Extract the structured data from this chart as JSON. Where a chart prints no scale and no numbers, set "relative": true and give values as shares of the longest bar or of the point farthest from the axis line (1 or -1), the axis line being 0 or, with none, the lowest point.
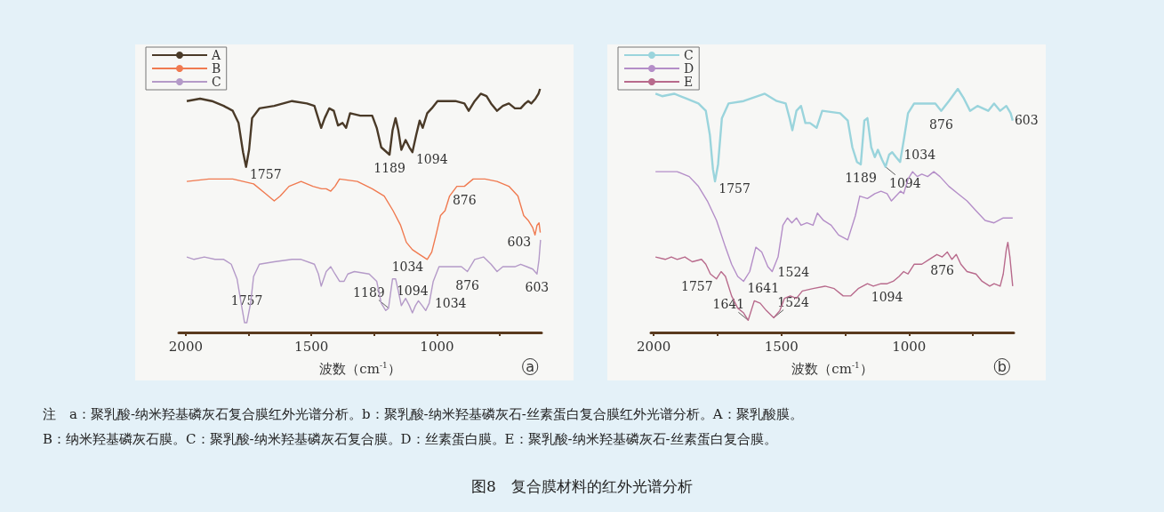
{
  "chart_data": [
    {
      "type": "line",
      "title": "a",
      "relative": true,
      "xlabel": "波数（cm$^{-1}$）",
      "xlim": [
        2028,
        584
      ],
      "xticks": [
        2000,
        {
          "value": 1750,
          "label": null
        },
        1500,
        {
          "value": 1250,
          "label": null
        },
        1000,
        {
          "value": 750,
          "label": null
        }
      ],
      "legend": "top left",
      "series": [
        {
          "name": "A",
          "color": "#4a3a28",
          "x": [
            1996,
            1943,
            1896,
            1849,
            1813,
            1790,
            1772,
            1760,
            1748,
            1736,
            1707,
            1648,
            1577,
            1518,
            1488,
            1476,
            1461,
            1447,
            1429,
            1411,
            1394,
            1376,
            1362,
            1346,
            1305,
            1258,
            1240,
            1222,
            1189,
            1177,
            1165,
            1154,
            1142,
            1125,
            1110,
            1098,
            1083,
            1069,
            1057,
            1039,
            1021,
            998,
            974,
            950,
            927,
            891,
            874,
            850,
            826,
            803,
            785,
            761,
            738,
            714,
            690,
            667,
            649,
            637,
            625,
            608,
            596,
            590
          ],
          "values": [
            0.95,
            0.96,
            0.95,
            0.93,
            0.91,
            0.86,
            0.74,
            0.68,
            0.75,
            0.88,
            0.92,
            0.93,
            0.95,
            0.94,
            0.93,
            0.89,
            0.84,
            0.88,
            0.92,
            0.91,
            0.85,
            0.86,
            0.84,
            0.9,
            0.89,
            0.89,
            0.84,
            0.76,
            0.73,
            0.83,
            0.88,
            0.83,
            0.75,
            0.79,
            0.76,
            0.74,
            0.81,
            0.87,
            0.84,
            0.9,
            0.92,
            0.95,
            0.95,
            0.95,
            0.95,
            0.94,
            0.91,
            0.95,
            0.98,
            0.97,
            0.94,
            0.91,
            0.93,
            0.94,
            0.92,
            0.92,
            0.94,
            0.95,
            0.94,
            0.96,
            0.98,
            1.0
          ]
        },
        {
          "name": "B",
          "color": "#f07a50",
          "x": [
            1996,
            1908,
            1813,
            1730,
            1683,
            1648,
            1624,
            1589,
            1541,
            1494,
            1459,
            1441,
            1423,
            1406,
            1388,
            1317,
            1258,
            1210,
            1175,
            1145,
            1122,
            1098,
            1069,
            1039,
            1021,
            1004,
            986,
            968,
            950,
            921,
            891,
            856,
            809,
            761,
            714,
            678,
            655,
            637,
            619,
            610,
            602,
            594,
            589
          ],
          "values": [
            0.62,
            0.63,
            0.63,
            0.61,
            0.57,
            0.54,
            0.56,
            0.6,
            0.62,
            0.6,
            0.59,
            0.59,
            0.58,
            0.6,
            0.63,
            0.62,
            0.59,
            0.56,
            0.5,
            0.44,
            0.37,
            0.34,
            0.32,
            0.3,
            0.33,
            0.4,
            0.48,
            0.5,
            0.56,
            0.6,
            0.6,
            0.63,
            0.63,
            0.62,
            0.6,
            0.56,
            0.48,
            0.46,
            0.43,
            0.4,
            0.44,
            0.45,
            0.41
          ]
        },
        {
          "name": "C",
          "color": "#b49ac8",
          "x": [
            1996,
            1967,
            1926,
            1884,
            1849,
            1819,
            1796,
            1778,
            1766,
            1757,
            1742,
            1730,
            1707,
            1648,
            1577,
            1541,
            1488,
            1472,
            1461,
            1441,
            1423,
            1406,
            1388,
            1370,
            1355,
            1329,
            1270,
            1240,
            1222,
            1204,
            1193,
            1177,
            1165,
            1154,
            1142,
            1125,
            1110,
            1098,
            1086,
            1074,
            1059,
            1045,
            1031,
            1015,
            992,
            968,
            939,
            903,
            879,
            850,
            815,
            785,
            761,
            738,
            690,
            667,
            643,
            619,
            602,
            594,
            588
          ],
          "values": [
            0.31,
            0.3,
            0.31,
            0.3,
            0.3,
            0.28,
            0.22,
            0.11,
            0.04,
            0.04,
            0.12,
            0.23,
            0.28,
            0.29,
            0.3,
            0.3,
            0.28,
            0.24,
            0.19,
            0.25,
            0.27,
            0.24,
            0.21,
            0.21,
            0.24,
            0.25,
            0.24,
            0.21,
            0.12,
            0.09,
            0.1,
            0.22,
            0.22,
            0.17,
            0.11,
            0.14,
            0.11,
            0.08,
            0.11,
            0.13,
            0.11,
            0.09,
            0.12,
            0.21,
            0.27,
            0.27,
            0.27,
            0.27,
            0.25,
            0.3,
            0.31,
            0.28,
            0.25,
            0.27,
            0.27,
            0.28,
            0.27,
            0.26,
            0.24,
            0.3,
            0.38
          ]
        }
      ],
      "annotations": [
        {
          "text": "1757",
          "x": 1760,
          "y": 0.68
        },
        {
          "text": "1189",
          "x": 1189,
          "y": 0.73
        },
        {
          "text": "1094",
          "x": 1098,
          "y": 0.74
        },
        {
          "text": "1034",
          "x": 1039,
          "y": 0.3
        },
        {
          "text": "876",
          "x": 891,
          "y": 0.6
        },
        {
          "text": "603",
          "x": 610,
          "y": 0.4
        },
        {
          "text": "1094",
          "x": 1098,
          "y": 0.08
        },
        {
          "text": "876",
          "x": 879,
          "y": 0.25
        },
        {
          "text": "603",
          "x": 602,
          "y": 0.24
        },
        {
          "text": "1757",
          "x": 1757,
          "y": 0.04
        },
        {
          "text": "1189",
          "x": 1193,
          "y": 0.1
        },
        {
          "text": "1034",
          "x": 1031,
          "y": 0.12
        }
      ]
    },
    {
      "type": "line",
      "title": "b",
      "relative": true,
      "xlabel": "波数（cm$^{-1}$）",
      "xlim": [
        2011,
        590
      ],
      "xticks": [
        2000,
        {
          "value": 1750,
          "label": null
        },
        1500,
        {
          "value": 1250,
          "label": null
        },
        1000,
        {
          "value": 750,
          "label": null
        }
      ],
      "legend": "top left",
      "series": [
        {
          "name": "C",
          "color": "#9ad4dc",
          "x": [
            1993,
            1967,
            1920,
            1872,
            1825,
            1796,
            1780,
            1768,
            1760,
            1748,
            1733,
            1707,
            1648,
            1565,
            1518,
            1483,
            1468,
            1457,
            1441,
            1423,
            1406,
            1388,
            1362,
            1340,
            1270,
            1240,
            1222,
            1204,
            1189,
            1175,
            1163,
            1148,
            1134,
            1122,
            1106,
            1092,
            1078,
            1066,
            1051,
            1035,
            1019,
            1004,
            980,
            939,
            897,
            874,
            844,
            809,
            785,
            761,
            732,
            690,
            667,
            643,
            619,
            602,
            594
          ],
          "values": [
            0.98,
            0.97,
            0.98,
            0.96,
            0.94,
            0.91,
            0.81,
            0.67,
            0.62,
            0.69,
            0.88,
            0.94,
            0.95,
            0.98,
            0.95,
            0.94,
            0.88,
            0.83,
            0.91,
            0.93,
            0.86,
            0.86,
            0.84,
            0.91,
            0.9,
            0.87,
            0.76,
            0.7,
            0.69,
            0.87,
            0.88,
            0.76,
            0.72,
            0.75,
            0.71,
            0.68,
            0.73,
            0.74,
            0.72,
            0.7,
            0.8,
            0.9,
            0.94,
            0.94,
            0.94,
            0.91,
            0.95,
            1.0,
            0.96,
            0.91,
            0.93,
            0.91,
            0.94,
            0.91,
            0.93,
            0.9,
            0.87
          ]
        },
        {
          "name": "D",
          "color": "#b48ec8",
          "x": [
            1993,
            1908,
            1861,
            1825,
            1790,
            1754,
            1719,
            1695,
            1671,
            1648,
            1624,
            1600,
            1577,
            1553,
            1536,
            1513,
            1494,
            1476,
            1459,
            1441,
            1423,
            1400,
            1376,
            1359,
            1335,
            1305,
            1276,
            1240,
            1210,
            1193,
            1163,
            1134,
            1110,
            1086,
            1069,
            1051,
            1033,
            1021,
            1004,
            986,
            968,
            950,
            927,
            903,
            879,
            844,
            809,
            773,
            738,
            702,
            667,
            631,
            594
          ],
          "values": [
            0.66,
            0.66,
            0.64,
            0.6,
            0.54,
            0.46,
            0.35,
            0.28,
            0.23,
            0.21,
            0.25,
            0.35,
            0.33,
            0.27,
            0.25,
            0.31,
            0.44,
            0.47,
            0.45,
            0.47,
            0.44,
            0.45,
            0.44,
            0.49,
            0.46,
            0.44,
            0.4,
            0.38,
            0.48,
            0.56,
            0.55,
            0.57,
            0.58,
            0.57,
            0.54,
            0.56,
            0.58,
            0.57,
            0.63,
            0.66,
            0.64,
            0.65,
            0.64,
            0.66,
            0.64,
            0.6,
            0.57,
            0.54,
            0.5,
            0.46,
            0.45,
            0.47,
            0.47
          ]
        },
        {
          "name": "E",
          "color": "#b86a8c",
          "x": [
            1993,
            1955,
            1931,
            1908,
            1878,
            1849,
            1813,
            1796,
            1778,
            1754,
            1736,
            1719,
            1695,
            1671,
            1648,
            1630,
            1606,
            1583,
            1559,
            1530,
            1506,
            1488,
            1465,
            1441,
            1418,
            1376,
            1329,
            1293,
            1258,
            1229,
            1199,
            1163,
            1140,
            1110,
            1086,
            1062,
            1039,
            1021,
            1004,
            980,
            950,
            921,
            891,
            870,
            850,
            832,
            815,
            797,
            773,
            738,
            714,
            684,
            667,
            643,
            631,
            619,
            613,
            605,
            594
          ],
          "values": [
            0.31,
            0.3,
            0.31,
            0.3,
            0.31,
            0.29,
            0.3,
            0.28,
            0.24,
            0.22,
            0.25,
            0.23,
            0.15,
            0.1,
            0.08,
            0.05,
            0.13,
            0.12,
            0.09,
            0.06,
            0.09,
            0.14,
            0.15,
            0.14,
            0.17,
            0.18,
            0.19,
            0.18,
            0.15,
            0.15,
            0.18,
            0.2,
            0.19,
            0.2,
            0.2,
            0.21,
            0.23,
            0.25,
            0.24,
            0.28,
            0.28,
            0.3,
            0.32,
            0.31,
            0.33,
            0.3,
            0.32,
            0.28,
            0.25,
            0.24,
            0.21,
            0.19,
            0.2,
            0.19,
            0.24,
            0.34,
            0.37,
            0.31,
            0.19
          ]
        }
      ],
      "annotations": [
        {
          "text": "1189",
          "x": 1189,
          "y": 0.69
        },
        {
          "text": "1034",
          "x": 1035,
          "y": 0.7
        },
        {
          "text": "1094",
          "x": 1092,
          "y": 0.68
        },
        {
          "text": "603",
          "x": 602,
          "y": 0.9
        },
        {
          "text": "876",
          "x": 874,
          "y": 0.91
        },
        {
          "text": "1757",
          "x": 1760,
          "y": 0.62
        },
        {
          "text": "1641",
          "x": 1648,
          "y": 0.21
        },
        {
          "text": "1524",
          "x": 1536,
          "y": 0.25
        },
        {
          "text": "1094",
          "x": 1086,
          "y": 0.2
        },
        {
          "text": "876",
          "x": 870,
          "y": 0.31
        },
        {
          "text": "1757",
          "x": 1754,
          "y": 0.22
        },
        {
          "text": "1641",
          "x": 1630,
          "y": 0.05
        },
        {
          "text": "1524",
          "x": 1530,
          "y": 0.06
        },
        "注　a：聚乳酸-纳米羟基磷灰石复合膜红外光谱分析。b：聚乳酸-纳米羟基磷灰石-丝素蛋白复合膜红外光谱分析。A：聚乳酸膜。",
        "B：纳米羟基磷灰石膜。C：聚乳酸-纳米羟基磷灰石复合膜。D：丝素蛋白膜。E：聚乳酸-纳米羟基磷灰石-丝素蛋白复合膜。",
        "图8　复合膜材料的红外光谱分析"
      ]
    }
  ]
}
